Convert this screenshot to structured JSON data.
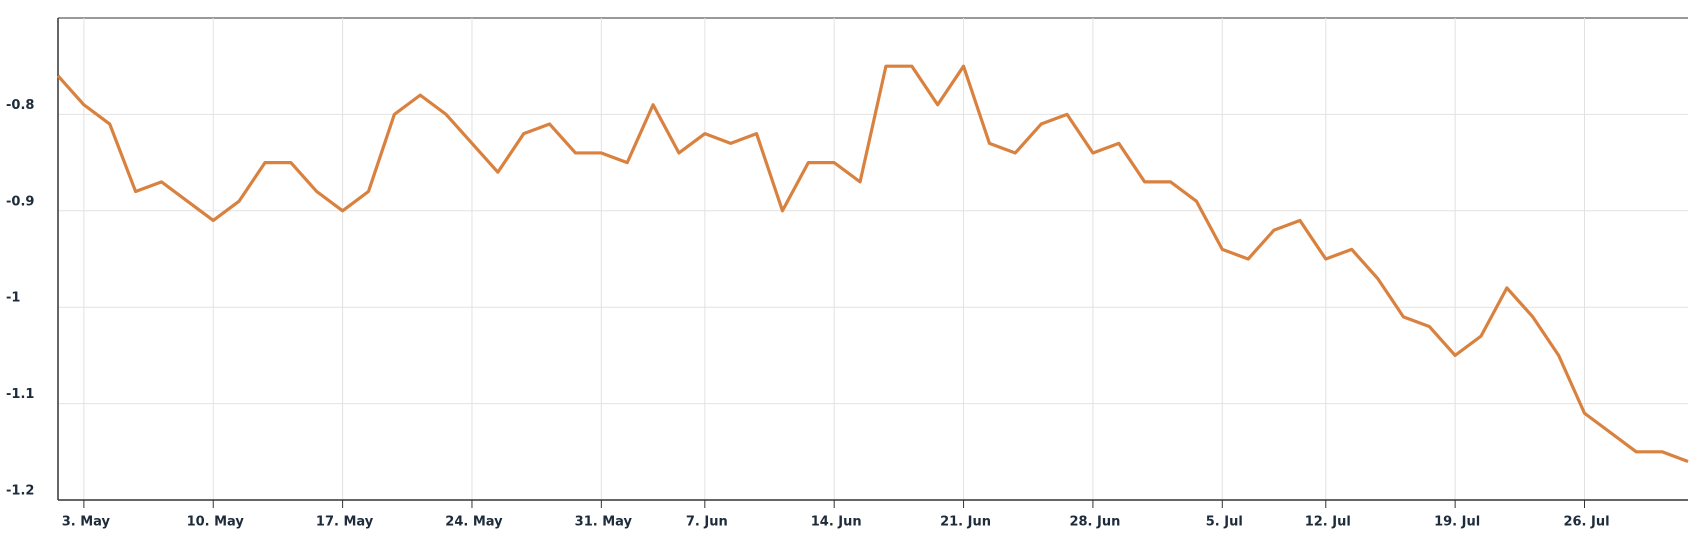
{
  "chart_data": {
    "type": "line",
    "categories": [
      null,
      "3. May",
      null,
      null,
      null,
      null,
      "10. May",
      null,
      null,
      null,
      null,
      "17. May",
      null,
      null,
      null,
      null,
      "24. May",
      null,
      null,
      null,
      null,
      "31. May",
      null,
      null,
      null,
      "7. Jun",
      null,
      null,
      null,
      null,
      "14. Jun",
      null,
      null,
      null,
      null,
      "21. Jun",
      null,
      null,
      null,
      null,
      "28. Jun",
      null,
      null,
      null,
      null,
      "5. Jul",
      null,
      null,
      null,
      "12. Jul",
      null,
      null,
      null,
      null,
      "19. Jul",
      null,
      null,
      null,
      null,
      "26. Jul",
      null,
      null,
      null,
      null
    ],
    "series": [
      {
        "color": "#d9813f",
        "values": [
          -0.76,
          -0.79,
          -0.81,
          -0.88,
          -0.87,
          -0.89,
          -0.91,
          -0.89,
          -0.85,
          -0.85,
          -0.88,
          -0.9,
          -0.88,
          -0.8,
          -0.78,
          -0.8,
          -0.83,
          -0.86,
          -0.82,
          -0.81,
          -0.84,
          -0.84,
          -0.85,
          -0.79,
          -0.84,
          -0.82,
          -0.83,
          -0.82,
          -0.9,
          -0.85,
          -0.85,
          -0.87,
          -0.75,
          -0.75,
          -0.79,
          -0.75,
          -0.83,
          -0.84,
          -0.81,
          -0.8,
          -0.84,
          -0.83,
          -0.87,
          -0.87,
          -0.89,
          -0.94,
          -0.95,
          -0.92,
          -0.91,
          -0.95,
          -0.94,
          -0.97,
          -1.01,
          -1.02,
          -1.05,
          -1.03,
          -0.98,
          -1.01,
          -1.05,
          -1.11,
          -1.13,
          -1.15,
          -1.15,
          -1.16
        ]
      }
    ],
    "ylim": [
      -1.2,
      -0.7
    ],
    "yticks": [
      -1.2,
      -1.1,
      -1,
      -0.9,
      -0.8
    ],
    "grid": true
  }
}
